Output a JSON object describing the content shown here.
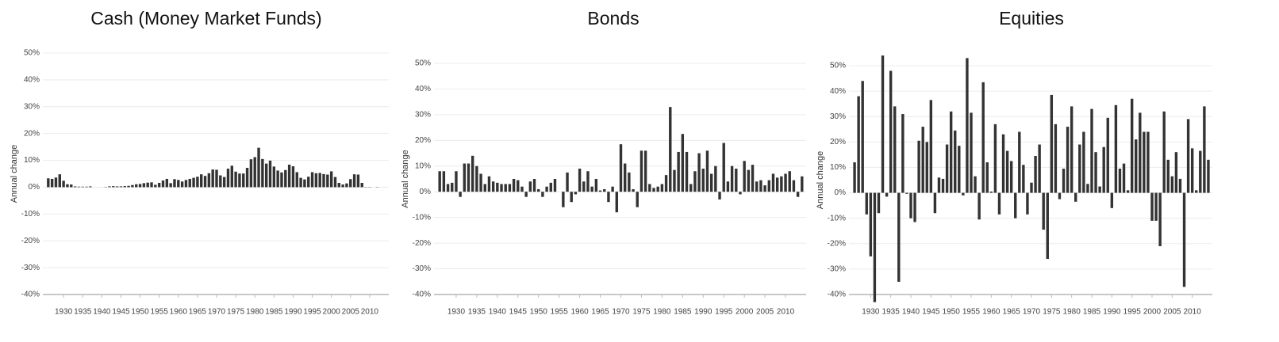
{
  "chart_data": [
    {
      "type": "bar",
      "title": "Cash (Money Market Funds)",
      "y_label": "Annual change",
      "color": "#333333",
      "grid": true,
      "x": [
        1926,
        1927,
        1928,
        1929,
        1930,
        1931,
        1932,
        1933,
        1934,
        1935,
        1936,
        1937,
        1938,
        1939,
        1940,
        1941,
        1942,
        1943,
        1944,
        1945,
        1946,
        1947,
        1948,
        1949,
        1950,
        1951,
        1952,
        1953,
        1954,
        1955,
        1956,
        1957,
        1958,
        1959,
        1960,
        1961,
        1962,
        1963,
        1964,
        1965,
        1966,
        1967,
        1968,
        1969,
        1970,
        1971,
        1972,
        1973,
        1974,
        1975,
        1976,
        1977,
        1978,
        1979,
        1980,
        1981,
        1982,
        1983,
        1984,
        1985,
        1986,
        1987,
        1988,
        1989,
        1990,
        1991,
        1992,
        1993,
        1994,
        1995,
        1996,
        1997,
        1998,
        1999,
        2000,
        2001,
        2002,
        2003,
        2004,
        2005,
        2006,
        2007,
        2008,
        2009,
        2010,
        2011,
        2012,
        2013,
        2014
      ],
      "values": [
        3.3,
        3.1,
        3.6,
        4.8,
        2.4,
        1.1,
        1.0,
        0.3,
        0.2,
        0.2,
        0.2,
        0.3,
        0.0,
        0.0,
        0.0,
        0.1,
        0.3,
        0.4,
        0.3,
        0.3,
        0.4,
        0.5,
        0.8,
        1.1,
        1.2,
        1.5,
        1.7,
        1.8,
        0.9,
        1.6,
        2.5,
        3.1,
        1.5,
        3.0,
        2.7,
        2.1,
        2.7,
        3.1,
        3.5,
        3.9,
        4.8,
        4.2,
        5.2,
        6.6,
        6.5,
        4.4,
        3.8,
        6.9,
        8.0,
        5.8,
        5.1,
        5.1,
        7.2,
        10.4,
        11.2,
        14.7,
        10.5,
        8.8,
        9.9,
        7.7,
        6.2,
        5.5,
        6.4,
        8.4,
        7.8,
        5.6,
        3.5,
        2.9,
        3.9,
        5.6,
        5.2,
        5.3,
        4.9,
        4.7,
        5.9,
        3.8,
        1.6,
        1.0,
        1.4,
        3.0,
        4.8,
        4.7,
        1.6,
        0.1,
        0.1,
        0.0,
        0.1,
        0.0,
        0.0
      ],
      "xlim": [
        1925,
        2015
      ],
      "xticks": [
        1930,
        1935,
        1940,
        1945,
        1950,
        1955,
        1960,
        1965,
        1970,
        1975,
        1980,
        1985,
        1990,
        1995,
        2000,
        2005,
        2010
      ],
      "ylim": [
        -40,
        50
      ],
      "yticks": [
        {
          "value": -40,
          "label": "-40%"
        },
        {
          "value": -30,
          "label": "-30%"
        },
        {
          "value": -20,
          "label": "-20%"
        },
        {
          "value": -10,
          "label": "-10%"
        },
        {
          "value": 0,
          "label": "0%"
        },
        {
          "value": 10,
          "label": "10%"
        },
        {
          "value": 20,
          "label": "20%"
        },
        {
          "value": 30,
          "label": "30%"
        },
        {
          "value": 40,
          "label": "40%"
        },
        {
          "value": 50,
          "label": "50%"
        }
      ]
    },
    {
      "type": "bar",
      "title": "Bonds",
      "y_label": "Annual change",
      "color": "#333333",
      "grid": true,
      "x": [
        1926,
        1927,
        1928,
        1929,
        1930,
        1931,
        1932,
        1933,
        1934,
        1935,
        1936,
        1937,
        1938,
        1939,
        1940,
        1941,
        1942,
        1943,
        1944,
        1945,
        1946,
        1947,
        1948,
        1949,
        1950,
        1951,
        1952,
        1953,
        1954,
        1955,
        1956,
        1957,
        1958,
        1959,
        1960,
        1961,
        1962,
        1963,
        1964,
        1965,
        1966,
        1967,
        1968,
        1969,
        1970,
        1971,
        1972,
        1973,
        1974,
        1975,
        1976,
        1977,
        1978,
        1979,
        1980,
        1981,
        1982,
        1983,
        1984,
        1985,
        1986,
        1987,
        1988,
        1989,
        1990,
        1991,
        1992,
        1993,
        1994,
        1995,
        1996,
        1997,
        1998,
        1999,
        2000,
        2001,
        2002,
        2003,
        2004,
        2005,
        2006,
        2007,
        2008,
        2009,
        2010,
        2011,
        2012,
        2013,
        2014
      ],
      "values": [
        8,
        8,
        3,
        3.5,
        8,
        -2,
        11,
        11,
        14,
        10,
        7,
        3,
        6,
        4,
        3.5,
        3,
        3,
        3,
        5,
        4.5,
        2,
        -2,
        4,
        5,
        1,
        -2,
        2,
        3.5,
        5,
        0,
        -6,
        7.5,
        -4,
        -1,
        9,
        4,
        8,
        2,
        5,
        0.5,
        1,
        -4,
        2,
        -8,
        18.5,
        11,
        7.5,
        1,
        -6,
        16,
        16,
        3,
        1.5,
        2,
        3,
        6.5,
        33,
        8.5,
        15.5,
        22.5,
        15.5,
        3,
        8,
        15,
        9,
        16,
        7,
        10,
        -3,
        19,
        4,
        10,
        9,
        -1,
        12,
        8.5,
        10.5,
        4,
        4.5,
        2.5,
        4.5,
        7,
        5.5,
        6,
        7,
        8,
        4.5,
        -2,
        6
      ],
      "xlim": [
        1925,
        2015
      ],
      "xticks": [
        1930,
        1935,
        1940,
        1945,
        1950,
        1955,
        1960,
        1965,
        1970,
        1975,
        1980,
        1985,
        1990,
        1995,
        2000,
        2005,
        2010
      ],
      "ylim": [
        -40,
        50
      ],
      "yticks": [
        {
          "value": -40,
          "label": "-40%"
        },
        {
          "value": -30,
          "label": "-30%"
        },
        {
          "value": -20,
          "label": "-20%"
        },
        {
          "value": -10,
          "label": "-10%"
        },
        {
          "value": 0,
          "label": "0%"
        },
        {
          "value": 10,
          "label": "10%"
        },
        {
          "value": 20,
          "label": "20%"
        },
        {
          "value": 30,
          "label": "30%"
        },
        {
          "value": 40,
          "label": "40%"
        },
        {
          "value": 50,
          "label": "50%"
        }
      ]
    },
    {
      "type": "bar",
      "title": "Equities",
      "y_label": "Annual change",
      "color": "#333333",
      "grid": true,
      "x": [
        1926,
        1927,
        1928,
        1929,
        1930,
        1931,
        1932,
        1933,
        1934,
        1935,
        1936,
        1937,
        1938,
        1939,
        1940,
        1941,
        1942,
        1943,
        1944,
        1945,
        1946,
        1947,
        1948,
        1949,
        1950,
        1951,
        1952,
        1953,
        1954,
        1955,
        1956,
        1957,
        1958,
        1959,
        1960,
        1961,
        1962,
        1963,
        1964,
        1965,
        1966,
        1967,
        1968,
        1969,
        1970,
        1971,
        1972,
        1973,
        1974,
        1975,
        1976,
        1977,
        1978,
        1979,
        1980,
        1981,
        1982,
        1983,
        1984,
        1985,
        1986,
        1987,
        1988,
        1989,
        1990,
        1991,
        1992,
        1993,
        1994,
        1995,
        1996,
        1997,
        1998,
        1999,
        2000,
        2001,
        2002,
        2003,
        2004,
        2005,
        2006,
        2007,
        2008,
        2009,
        2010,
        2011,
        2012,
        2013,
        2014
      ],
      "values": [
        12,
        38,
        44,
        -8.5,
        -25,
        -43,
        -8,
        54,
        -1.5,
        48,
        34,
        -35,
        31,
        -0.4,
        -10,
        -11.5,
        20.5,
        26,
        20,
        36.5,
        -8,
        6,
        5.5,
        19,
        32,
        24.5,
        18.5,
        -1,
        53,
        31.5,
        6.5,
        -10.5,
        43.5,
        12,
        0.5,
        27,
        -8.5,
        23,
        16.5,
        12.5,
        -10,
        24,
        11,
        -8.5,
        4,
        14.5,
        19,
        -14.5,
        -26,
        38.5,
        27,
        -2.5,
        9.5,
        26,
        34,
        -3.5,
        19,
        24,
        3.5,
        33,
        16,
        2.5,
        18,
        29.5,
        -6,
        34.5,
        9.5,
        11.5,
        1,
        37,
        21,
        31.5,
        24,
        24,
        -11,
        -11,
        -21,
        32,
        13,
        6.5,
        16,
        5.5,
        -37,
        29,
        17.5,
        1,
        16.5,
        34,
        13
      ],
      "xlim": [
        1925,
        2015
      ],
      "xticks": [
        1930,
        1935,
        1940,
        1945,
        1950,
        1955,
        1960,
        1965,
        1970,
        1975,
        1980,
        1985,
        1990,
        1995,
        2000,
        2005,
        2010
      ],
      "ylim": [
        -40,
        50
      ],
      "yticks": [
        {
          "value": -40,
          "label": "-40%"
        },
        {
          "value": -30,
          "label": "-30%"
        },
        {
          "value": -20,
          "label": "-20%"
        },
        {
          "value": -10,
          "label": "-10%"
        },
        {
          "value": 0,
          "label": "0%"
        },
        {
          "value": 10,
          "label": "10%"
        },
        {
          "value": 20,
          "label": "20%"
        },
        {
          "value": 30,
          "label": "30%"
        },
        {
          "value": 40,
          "label": "40%"
        },
        {
          "value": 50,
          "label": "50%"
        }
      ]
    }
  ]
}
